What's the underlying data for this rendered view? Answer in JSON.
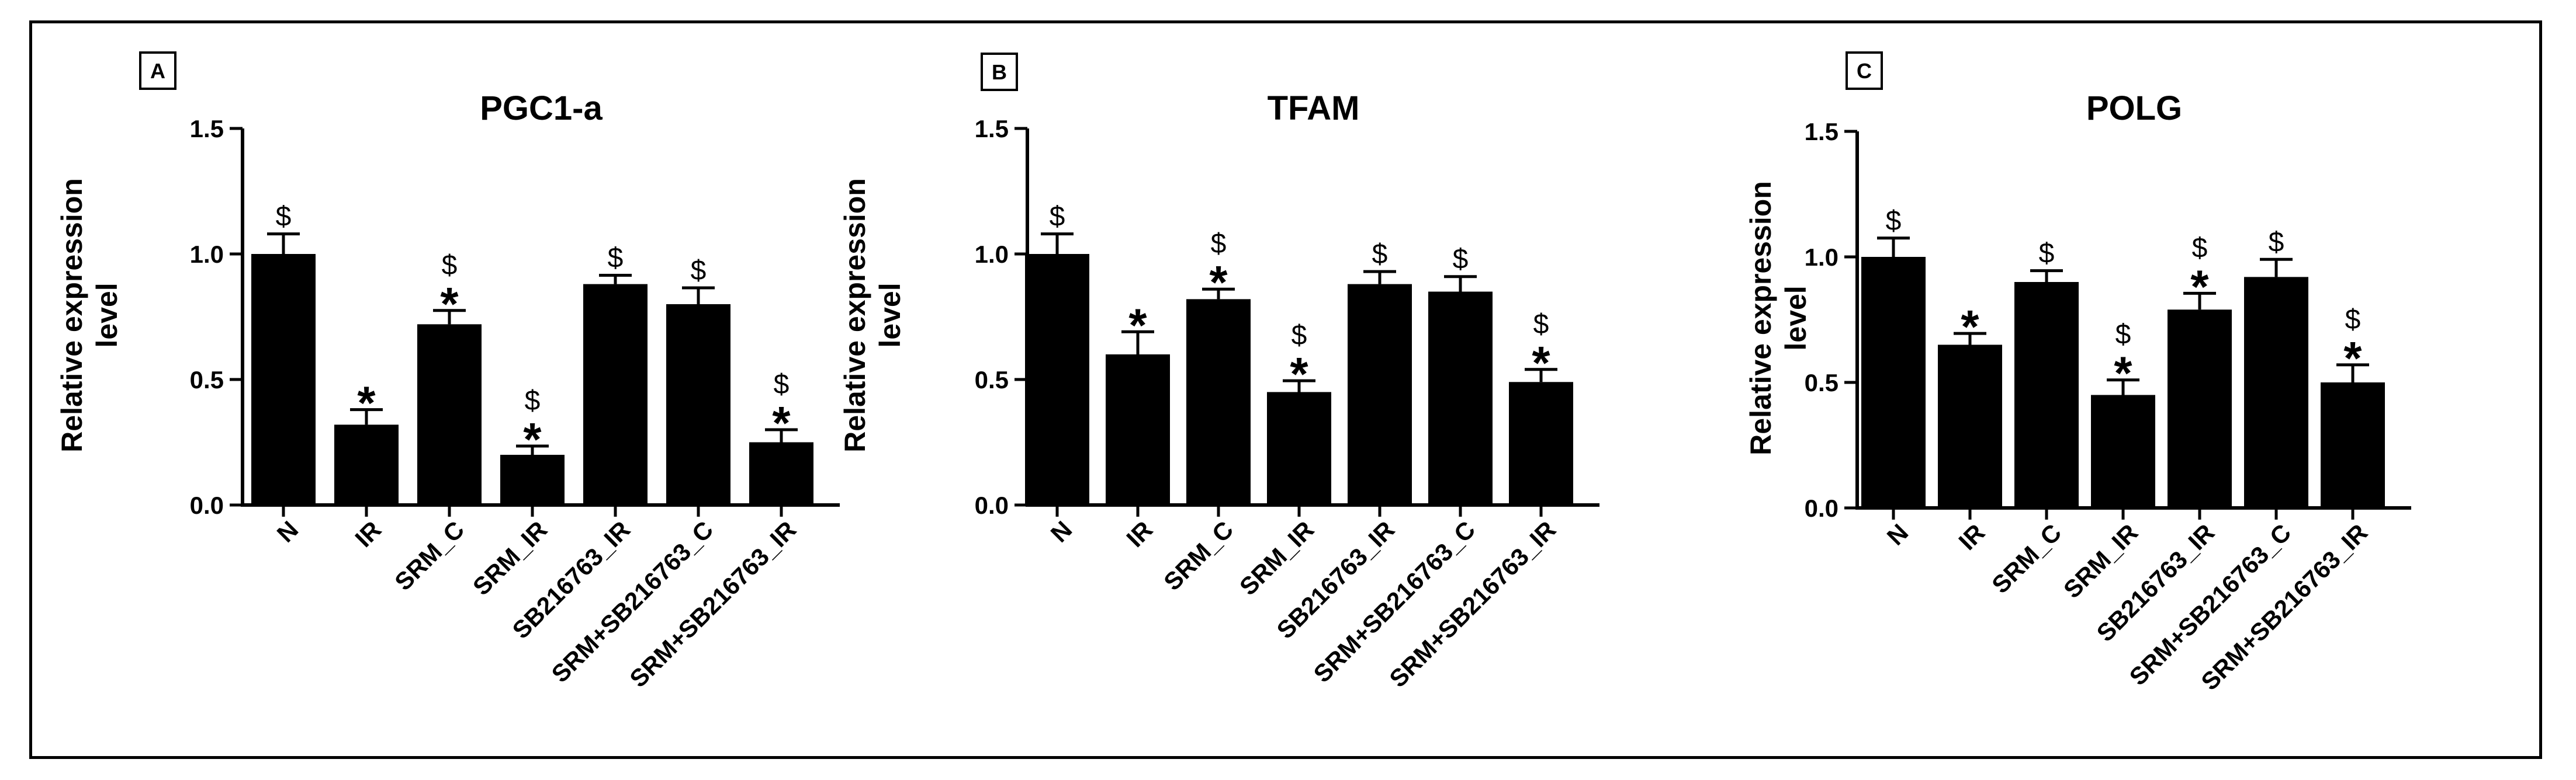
{
  "colors": {
    "bar": "#000000",
    "axis": "#000000",
    "background": "#ffffff"
  },
  "chart_data": [
    {
      "type": "bar",
      "panel": "A",
      "title": "PGC1-a",
      "ylabel": "Relative expression level",
      "ylabel_lines": [
        "Relative expression",
        "level"
      ],
      "xlabel": "",
      "ylim": [
        0,
        1.5
      ],
      "yticks": [
        "0.0",
        "0.5",
        "1.0",
        "1.5"
      ],
      "categories": [
        "N",
        "IR",
        "SRM_C",
        "SRM_IR",
        "SB216763_IR",
        "SRM+SB216763_C",
        "SRM+SB216763_IR"
      ],
      "values": [
        1.0,
        0.32,
        0.72,
        0.2,
        0.88,
        0.8,
        0.25
      ],
      "errors": [
        0.08,
        0.06,
        0.055,
        0.035,
        0.035,
        0.065,
        0.05
      ],
      "annotations": [
        [
          "$"
        ],
        [
          "*"
        ],
        [
          "$",
          "*"
        ],
        [
          "$",
          "*"
        ],
        [
          "$"
        ],
        [
          "$"
        ],
        [
          "$",
          "*"
        ]
      ]
    },
    {
      "type": "bar",
      "panel": "B",
      "title": "TFAM",
      "ylabel": "Relative expression level",
      "ylabel_lines": [
        "Relative expression",
        "level"
      ],
      "xlabel": "",
      "ylim": [
        0,
        1.5
      ],
      "yticks": [
        "0.0",
        "0.5",
        "1.0",
        "1.5"
      ],
      "categories": [
        "N",
        "IR",
        "SRM_C",
        "SRM_IR",
        "SB216763_IR",
        "SRM+SB216763_C",
        "SRM+SB216763_IR"
      ],
      "values": [
        1.0,
        0.6,
        0.82,
        0.45,
        0.88,
        0.85,
        0.49
      ],
      "errors": [
        0.08,
        0.09,
        0.04,
        0.045,
        0.05,
        0.06,
        0.05
      ],
      "annotations": [
        [
          "$"
        ],
        [
          "*"
        ],
        [
          "$",
          "*"
        ],
        [
          "$",
          "*"
        ],
        [
          "$"
        ],
        [
          "$"
        ],
        [
          "$",
          "*"
        ]
      ]
    },
    {
      "type": "bar",
      "panel": "C",
      "title": "POLG",
      "ylabel": "Relative expression level",
      "ylabel_lines": [
        "Relative expression",
        "level"
      ],
      "xlabel": "",
      "ylim": [
        0,
        1.5
      ],
      "yticks": [
        "0.0",
        "0.5",
        "1.0",
        "1.5"
      ],
      "categories": [
        "N",
        "IR",
        "SRM_C",
        "SRM_IR",
        "SB216763_IR",
        "SRM+SB216763_C",
        "SRM+SB216763_IR"
      ],
      "values": [
        1.0,
        0.65,
        0.9,
        0.45,
        0.79,
        0.92,
        0.5
      ],
      "errors": [
        0.075,
        0.045,
        0.045,
        0.06,
        0.065,
        0.07,
        0.07
      ],
      "annotations": [
        [
          "$"
        ],
        [
          "*"
        ],
        [
          "$"
        ],
        [
          "$",
          "*"
        ],
        [
          "$",
          "*"
        ],
        [
          "$"
        ],
        [
          "$",
          "*"
        ]
      ]
    }
  ]
}
